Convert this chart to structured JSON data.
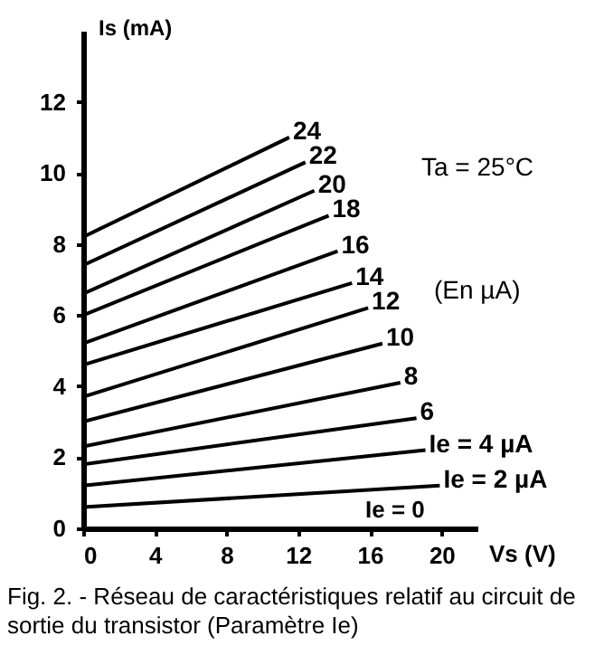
{
  "chart_data": {
    "type": "line",
    "xlabel": "Vs (V)",
    "ylabel": "Is (mA)",
    "xlim": [
      0,
      22
    ],
    "xticks": [
      0,
      4,
      8,
      12,
      16,
      20
    ],
    "ylim": [
      0,
      14
    ],
    "yticks": [
      0,
      2,
      4,
      6,
      8,
      10,
      12
    ],
    "grid": false,
    "marker": "none",
    "line_style": "solid",
    "series": [
      {
        "name": "24",
        "color": "#000000",
        "x": [
          0,
          11.5
        ],
        "values": [
          8.2,
          11.0
        ]
      },
      {
        "name": "22",
        "color": "#000000",
        "x": [
          0,
          12.4
        ],
        "values": [
          7.4,
          10.3
        ]
      },
      {
        "name": "20",
        "color": "#000000",
        "x": [
          0,
          12.9
        ],
        "values": [
          6.6,
          9.5
        ]
      },
      {
        "name": "18",
        "color": "#000000",
        "x": [
          0,
          13.7
        ],
        "values": [
          6.0,
          8.8
        ]
      },
      {
        "name": "16",
        "color": "#000000",
        "x": [
          0,
          14.2
        ],
        "values": [
          5.2,
          7.8
        ]
      },
      {
        "name": "14",
        "color": "#000000",
        "x": [
          0,
          15.0
        ],
        "values": [
          4.6,
          6.9
        ]
      },
      {
        "name": "12",
        "color": "#000000",
        "x": [
          0,
          15.9
        ],
        "values": [
          3.7,
          6.2
        ]
      },
      {
        "name": "10",
        "color": "#000000",
        "x": [
          0,
          16.7
        ],
        "values": [
          3.0,
          5.2
        ]
      },
      {
        "name": "8",
        "color": "#000000",
        "x": [
          0,
          17.7
        ],
        "values": [
          2.3,
          4.1
        ]
      },
      {
        "name": "6",
        "color": "#000000",
        "x": [
          0,
          18.6
        ],
        "values": [
          1.8,
          3.1
        ]
      },
      {
        "name": "Ie = 4 µA",
        "color": "#000000",
        "x": [
          0,
          19.1
        ],
        "values": [
          1.2,
          2.2
        ]
      },
      {
        "name": "Ie = 2 µA",
        "color": "#000000",
        "x": [
          0,
          19.9
        ],
        "values": [
          0.6,
          1.2
        ]
      }
    ],
    "annotations": [
      "Ta = 25°C",
      "(En µA)",
      "Ie = 0",
      "Fig. 2. - Réseau de caractéristiques relatif au circuit de sortie du transistor (Paramètre Ie)"
    ]
  }
}
